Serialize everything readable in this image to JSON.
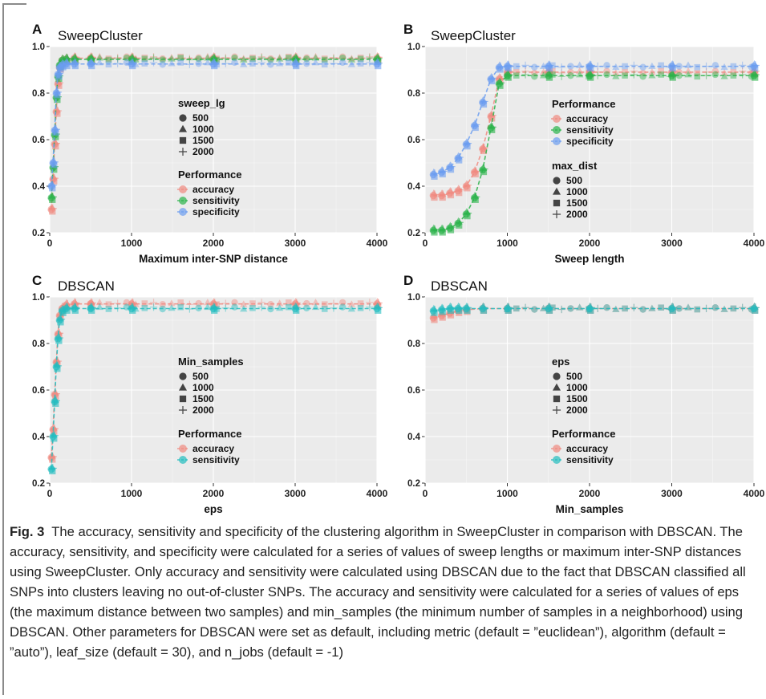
{
  "caption": {
    "label": "Fig. 3",
    "text": "The accuracy, sensitivity and specificity of the clustering algorithm in SweepCluster in comparison with DBSCAN. The accuracy, sensitivity, and specificity were calculated for a series of values of sweep lengths or maximum inter-SNP distances using SweepCluster. Only accuracy and sensitivity were calculated using DBSCAN due to the fact that DBSCAN classified all SNPs into clusters leaving no out-of-cluster SNPs. The accuracy and sensitivity were calculated for a series of values of eps (the maximum distance between two samples) and min_samples (the minimum number of samples in a neighborhood) using DBSCAN. Other parameters for DBSCAN were set as default, including metric (default = ”euclidean”), algorithm (default = ”auto”), leaf_size (default = 30), and n_jobs (default = -1)"
  },
  "colors": {
    "accuracy": "#f08a80",
    "sensitivity": "#2ab34a",
    "specificity": "#6b9df0",
    "sensitivity_dbscan": "#22bdbf",
    "panel_bg": "#ebebeb",
    "grid": "#ffffff"
  },
  "chart_data": [
    {
      "panel": "A",
      "title": "SweepCluster",
      "type": "scatter",
      "xlabel": "Maximum inter-SNP distance",
      "ylabel": "",
      "xlim": [
        0,
        4000
      ],
      "ylim": [
        0.2,
        1.0
      ],
      "xticks": [
        0,
        1000,
        2000,
        3000,
        4000
      ],
      "yticks": [
        0.2,
        0.4,
        0.6,
        0.8,
        1.0
      ],
      "x": [
        20,
        40,
        60,
        80,
        100,
        120,
        150,
        200,
        300,
        500,
        1000,
        2000,
        3000,
        4000
      ],
      "series": [
        {
          "name": "accuracy",
          "values": [
            0.3,
            0.43,
            0.58,
            0.72,
            0.84,
            0.91,
            0.94,
            0.945,
            0.95,
            0.95,
            0.95,
            0.95,
            0.95,
            0.95
          ]
        },
        {
          "name": "sensitivity",
          "values": [
            0.35,
            0.48,
            0.62,
            0.78,
            0.87,
            0.92,
            0.94,
            0.945,
            0.945,
            0.945,
            0.945,
            0.945,
            0.945,
            0.945
          ]
        },
        {
          "name": "specificity",
          "values": [
            0.4,
            0.5,
            0.64,
            0.8,
            0.88,
            0.91,
            0.92,
            0.925,
            0.925,
            0.925,
            0.925,
            0.925,
            0.925,
            0.925
          ]
        }
      ],
      "legends": [
        {
          "title": "sweep_lg",
          "kind": "shape",
          "items": [
            "500",
            "1000",
            "1500",
            "2000"
          ]
        },
        {
          "title": "Performance",
          "kind": "color",
          "items": [
            "accuracy",
            "sensitivity",
            "specificity"
          ]
        }
      ]
    },
    {
      "panel": "B",
      "title": "SweepCluster",
      "type": "scatter",
      "xlabel": "Sweep length",
      "ylabel": "",
      "xlim": [
        0,
        4000
      ],
      "ylim": [
        0.2,
        1.0
      ],
      "xticks": [
        0,
        1000,
        2000,
        3000,
        4000
      ],
      "yticks": [
        0.2,
        0.4,
        0.6,
        0.8,
        1.0
      ],
      "x": [
        100,
        200,
        300,
        400,
        500,
        600,
        700,
        800,
        900,
        1000,
        1500,
        2000,
        3000,
        4000
      ],
      "series": [
        {
          "name": "accuracy",
          "values": [
            0.36,
            0.36,
            0.37,
            0.38,
            0.4,
            0.46,
            0.56,
            0.7,
            0.86,
            0.89,
            0.89,
            0.89,
            0.89,
            0.89
          ]
        },
        {
          "name": "sensitivity",
          "values": [
            0.21,
            0.21,
            0.22,
            0.24,
            0.28,
            0.35,
            0.47,
            0.65,
            0.84,
            0.875,
            0.875,
            0.875,
            0.875,
            0.875
          ]
        },
        {
          "name": "specificity",
          "values": [
            0.45,
            0.46,
            0.48,
            0.52,
            0.58,
            0.66,
            0.76,
            0.86,
            0.91,
            0.915,
            0.915,
            0.915,
            0.915,
            0.915
          ]
        }
      ],
      "legends": [
        {
          "title": "Performance",
          "kind": "color",
          "items": [
            "accuracy",
            "sensitivity",
            "specificity"
          ]
        },
        {
          "title": "max_dist",
          "kind": "shape",
          "items": [
            "500",
            "1000",
            "1500",
            "2000"
          ]
        }
      ]
    },
    {
      "panel": "C",
      "title": "DBSCAN",
      "type": "scatter",
      "xlabel": "eps",
      "ylabel": "",
      "xlim": [
        0,
        4000
      ],
      "ylim": [
        0.2,
        1.0
      ],
      "xticks": [
        0,
        1000,
        2000,
        3000,
        4000
      ],
      "yticks": [
        0.2,
        0.4,
        0.6,
        0.8,
        1.0
      ],
      "x": [
        20,
        40,
        60,
        80,
        100,
        120,
        150,
        200,
        300,
        500,
        1000,
        2000,
        3000,
        4000
      ],
      "series": [
        {
          "name": "accuracy",
          "values": [
            0.31,
            0.43,
            0.58,
            0.72,
            0.84,
            0.92,
            0.95,
            0.965,
            0.97,
            0.97,
            0.97,
            0.97,
            0.97,
            0.97
          ]
        },
        {
          "name": "sensitivity",
          "values": [
            0.26,
            0.4,
            0.55,
            0.7,
            0.82,
            0.9,
            0.94,
            0.95,
            0.95,
            0.95,
            0.95,
            0.95,
            0.95,
            0.95
          ]
        }
      ],
      "legends": [
        {
          "title": "Min_samples",
          "kind": "shape",
          "items": [
            "500",
            "1000",
            "1500",
            "2000"
          ]
        },
        {
          "title": "Performance",
          "kind": "color",
          "items": [
            "accuracy",
            "sensitivity"
          ]
        }
      ]
    },
    {
      "panel": "D",
      "title": "DBSCAN",
      "type": "scatter",
      "xlabel": "Min_samples",
      "ylabel": "",
      "xlim": [
        0,
        4000
      ],
      "ylim": [
        0.2,
        1.0
      ],
      "xticks": [
        0,
        1000,
        2000,
        3000,
        4000
      ],
      "yticks": [
        0.2,
        0.4,
        0.6,
        0.8,
        1.0
      ],
      "x": [
        100,
        200,
        300,
        400,
        500,
        700,
        1000,
        1500,
        2000,
        3000,
        4000
      ],
      "series": [
        {
          "name": "accuracy",
          "values": [
            0.91,
            0.92,
            0.93,
            0.94,
            0.945,
            0.95,
            0.95,
            0.95,
            0.95,
            0.95,
            0.95
          ]
        },
        {
          "name": "sensitivity",
          "values": [
            0.94,
            0.945,
            0.95,
            0.95,
            0.95,
            0.95,
            0.95,
            0.95,
            0.95,
            0.95,
            0.95
          ]
        }
      ],
      "legends": [
        {
          "title": "eps",
          "kind": "shape",
          "items": [
            "500",
            "1000",
            "1500",
            "2000"
          ]
        },
        {
          "title": "Performance",
          "kind": "color",
          "items": [
            "accuracy",
            "sensitivity"
          ]
        }
      ]
    }
  ]
}
